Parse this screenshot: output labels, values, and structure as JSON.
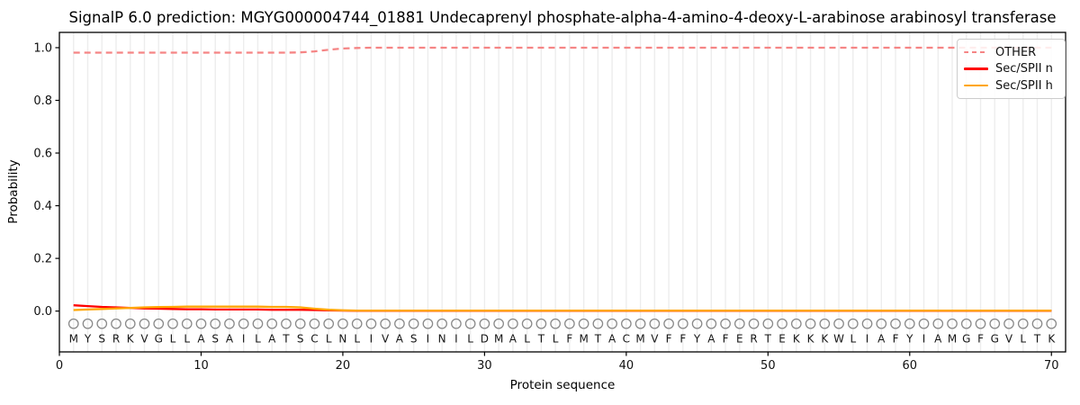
{
  "chart_data": {
    "type": "line",
    "title": "SignalP 6.0 prediction: MGYG000004744_01881 Undecaprenyl phosphate-alpha-4-amino-4-deoxy-L-arabinose arabinosyl transferase",
    "xlabel": "Protein sequence",
    "ylabel": "Probability",
    "xlim": [
      0,
      71
    ],
    "ylim": [
      -0.155,
      1.058
    ],
    "xticks": [
      0,
      10,
      20,
      30,
      40,
      50,
      60,
      70
    ],
    "yticks": [
      "0.0",
      "0.2",
      "0.4",
      "0.6",
      "0.8",
      "1.0"
    ],
    "grid": "vertical line at every residue position",
    "legend_position": "upper right",
    "sequence": "MYSRKVGLLASAILATSCLNLIVASINILDMALTLFMTACMVFFYAFERTEKKKWLIAFYIAMGFGVLTK",
    "marker_row_y": -0.048,
    "letter_row_y": -0.105,
    "x_start": 1,
    "series": [
      {
        "name": "OTHER",
        "color": "#f58585",
        "style": "dashed",
        "values": [
          0.981,
          0.981,
          0.981,
          0.981,
          0.981,
          0.981,
          0.981,
          0.981,
          0.981,
          0.981,
          0.981,
          0.981,
          0.981,
          0.981,
          0.981,
          0.981,
          0.982,
          0.986,
          0.992,
          0.997,
          0.999,
          1.0,
          1.0,
          1.0,
          1.0,
          1.0,
          1.0,
          1.0,
          1.0,
          1.0,
          1.0,
          1.0,
          1.0,
          1.0,
          1.0,
          1.0,
          1.0,
          1.0,
          1.0,
          1.0,
          1.0,
          1.0,
          1.0,
          1.0,
          1.0,
          1.0,
          1.0,
          1.0,
          1.0,
          1.0,
          1.0,
          1.0,
          1.0,
          1.0,
          1.0,
          1.0,
          1.0,
          1.0,
          1.0,
          1.0,
          1.0,
          1.0,
          1.0,
          1.0,
          1.0,
          1.0,
          1.0,
          1.0,
          1.0,
          1.0
        ]
      },
      {
        "name": "Sec/SPII n",
        "color": "#ff0000",
        "style": "solid",
        "values": [
          0.022,
          0.019,
          0.016,
          0.014,
          0.012,
          0.01,
          0.009,
          0.008,
          0.007,
          0.007,
          0.006,
          0.006,
          0.006,
          0.006,
          0.005,
          0.005,
          0.005,
          0.004,
          0.003,
          0.002,
          0.001,
          0.001,
          0.001,
          0.001,
          0.001,
          0.001,
          0.001,
          0.001,
          0.001,
          0.001,
          0.001,
          0.001,
          0.001,
          0.001,
          0.001,
          0.001,
          0.001,
          0.001,
          0.001,
          0.001,
          0.001,
          0.001,
          0.001,
          0.001,
          0.001,
          0.001,
          0.001,
          0.001,
          0.001,
          0.001,
          0.001,
          0.001,
          0.001,
          0.001,
          0.001,
          0.001,
          0.001,
          0.001,
          0.001,
          0.001,
          0.001,
          0.001,
          0.001,
          0.001,
          0.001,
          0.001,
          0.001,
          0.001,
          0.001,
          0.001
        ]
      },
      {
        "name": "Sec/SPII h",
        "color": "#ffa500",
        "style": "solid",
        "values": [
          0.004,
          0.006,
          0.008,
          0.01,
          0.012,
          0.014,
          0.015,
          0.016,
          0.017,
          0.017,
          0.017,
          0.017,
          0.017,
          0.017,
          0.016,
          0.016,
          0.014,
          0.009,
          0.005,
          0.003,
          0.002,
          0.002,
          0.002,
          0.002,
          0.002,
          0.002,
          0.002,
          0.002,
          0.002,
          0.002,
          0.002,
          0.002,
          0.002,
          0.002,
          0.002,
          0.002,
          0.002,
          0.002,
          0.002,
          0.002,
          0.002,
          0.002,
          0.002,
          0.002,
          0.002,
          0.002,
          0.002,
          0.002,
          0.002,
          0.002,
          0.002,
          0.002,
          0.002,
          0.002,
          0.002,
          0.002,
          0.002,
          0.002,
          0.002,
          0.002,
          0.002,
          0.002,
          0.002,
          0.002,
          0.002,
          0.002,
          0.002,
          0.002,
          0.002,
          0.002
        ]
      }
    ]
  },
  "colors": {
    "grid": "#ededed",
    "spine": "#000000",
    "tick_label": "#111111",
    "marker": "#8a8a8a",
    "letter": "#151515",
    "legend_border": "#cccccc",
    "background": "#ffffff"
  }
}
